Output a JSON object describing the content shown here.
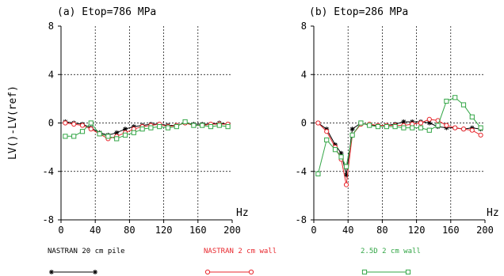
{
  "figure": {
    "ylabel": "LV()-LV(ref)",
    "xunit": "Hz"
  },
  "legend": [
    {
      "name": "NASTRAN 20 cm pile",
      "color": "#000000",
      "marker": "star"
    },
    {
      "name": "NASTRAN 2 cm wall",
      "color": "#e8272d",
      "marker": "circle"
    },
    {
      "name": "2.5D 2 cm wall",
      "color": "#33a646",
      "marker": "square"
    }
  ],
  "chart_data": [
    {
      "type": "line",
      "title": "(a) Etop=786 MPa",
      "xlabel": "Hz",
      "ylabel": "LV()-LV(ref)",
      "xlim": [
        0,
        200
      ],
      "ylim": [
        -8,
        8
      ],
      "xticks": [
        0,
        40,
        80,
        120,
        160,
        200
      ],
      "yticks": [
        -8,
        -4,
        0,
        4,
        8
      ],
      "grid": true,
      "series": [
        {
          "name": "NASTRAN 20 cm pile",
          "color": "#000000",
          "marker": "star",
          "x": [
            5,
            15,
            25,
            35,
            45,
            55,
            65,
            75,
            85,
            95,
            105,
            115,
            125,
            135,
            145,
            155,
            165,
            175,
            185,
            195
          ],
          "y": [
            0.1,
            0.0,
            -0.1,
            -0.4,
            -0.8,
            -1.0,
            -0.8,
            -0.5,
            -0.3,
            -0.2,
            -0.1,
            -0.1,
            -0.2,
            -0.2,
            0.0,
            -0.1,
            -0.1,
            -0.1,
            0.0,
            -0.1
          ]
        },
        {
          "name": "NASTRAN 2 cm wall",
          "color": "#e8272d",
          "marker": "circle",
          "x": [
            5,
            15,
            25,
            35,
            45,
            55,
            65,
            75,
            85,
            95,
            105,
            115,
            125,
            135,
            145,
            155,
            165,
            175,
            185,
            195
          ],
          "y": [
            0.0,
            -0.1,
            -0.2,
            -0.5,
            -0.9,
            -1.3,
            -1.1,
            -0.8,
            -0.5,
            -0.3,
            -0.2,
            -0.1,
            -0.3,
            -0.2,
            0.0,
            -0.2,
            -0.2,
            -0.1,
            -0.1,
            -0.1
          ]
        },
        {
          "name": "2.5D 2 cm wall",
          "color": "#33a646",
          "marker": "square",
          "x": [
            5,
            15,
            25,
            35,
            45,
            55,
            65,
            75,
            85,
            95,
            105,
            115,
            125,
            135,
            145,
            155,
            165,
            175,
            185,
            195
          ],
          "y": [
            -1.1,
            -1.1,
            -0.7,
            0.0,
            -0.9,
            -1.1,
            -1.3,
            -1.0,
            -0.8,
            -0.5,
            -0.4,
            -0.3,
            -0.4,
            -0.3,
            0.1,
            -0.2,
            -0.2,
            -0.3,
            -0.2,
            -0.3
          ]
        }
      ]
    },
    {
      "type": "line",
      "title": "(b) Etop=286 MPa",
      "xlabel": "Hz",
      "ylabel": "LV()-LV(ref)",
      "xlim": [
        0,
        200
      ],
      "ylim": [
        -8,
        8
      ],
      "xticks": [
        0,
        40,
        80,
        120,
        160,
        200
      ],
      "yticks": [
        -8,
        -4,
        0,
        4,
        8
      ],
      "grid": true,
      "series": [
        {
          "name": "NASTRAN 20 cm pile",
          "color": "#000000",
          "marker": "star",
          "x": [
            5,
            15,
            25,
            32,
            38,
            45,
            55,
            65,
            75,
            85,
            95,
            105,
            115,
            125,
            135,
            145,
            155,
            165,
            175,
            185,
            195
          ],
          "y": [
            0.0,
            -0.5,
            -1.8,
            -2.5,
            -4.3,
            -0.5,
            0.0,
            -0.2,
            -0.2,
            -0.2,
            -0.1,
            0.1,
            0.1,
            0.1,
            0.0,
            -0.3,
            -0.4,
            -0.4,
            -0.5,
            -0.4,
            -0.5
          ]
        },
        {
          "name": "NASTRAN 2 cm wall",
          "color": "#e8272d",
          "marker": "circle",
          "x": [
            5,
            15,
            25,
            32,
            38,
            45,
            55,
            65,
            75,
            85,
            95,
            105,
            115,
            125,
            135,
            145,
            155,
            165,
            175,
            185,
            195
          ],
          "y": [
            0.0,
            -0.7,
            -2.0,
            -3.0,
            -5.1,
            -1.0,
            -0.1,
            -0.1,
            -0.2,
            -0.2,
            -0.2,
            -0.2,
            -0.1,
            0.0,
            0.3,
            0.2,
            -0.2,
            -0.4,
            -0.5,
            -0.6,
            -1.0
          ]
        },
        {
          "name": "2.5D 2 cm wall",
          "color": "#33a646",
          "marker": "square",
          "x": [
            5,
            15,
            25,
            32,
            38,
            45,
            55,
            65,
            75,
            85,
            95,
            105,
            115,
            125,
            135,
            145,
            155,
            165,
            175,
            185,
            195
          ],
          "y": [
            -4.2,
            -1.4,
            -2.2,
            -2.8,
            -3.6,
            -1.0,
            0.0,
            -0.2,
            -0.3,
            -0.3,
            -0.3,
            -0.4,
            -0.4,
            -0.4,
            -0.6,
            -0.2,
            1.8,
            2.1,
            1.5,
            0.5,
            -0.4
          ]
        }
      ]
    }
  ]
}
